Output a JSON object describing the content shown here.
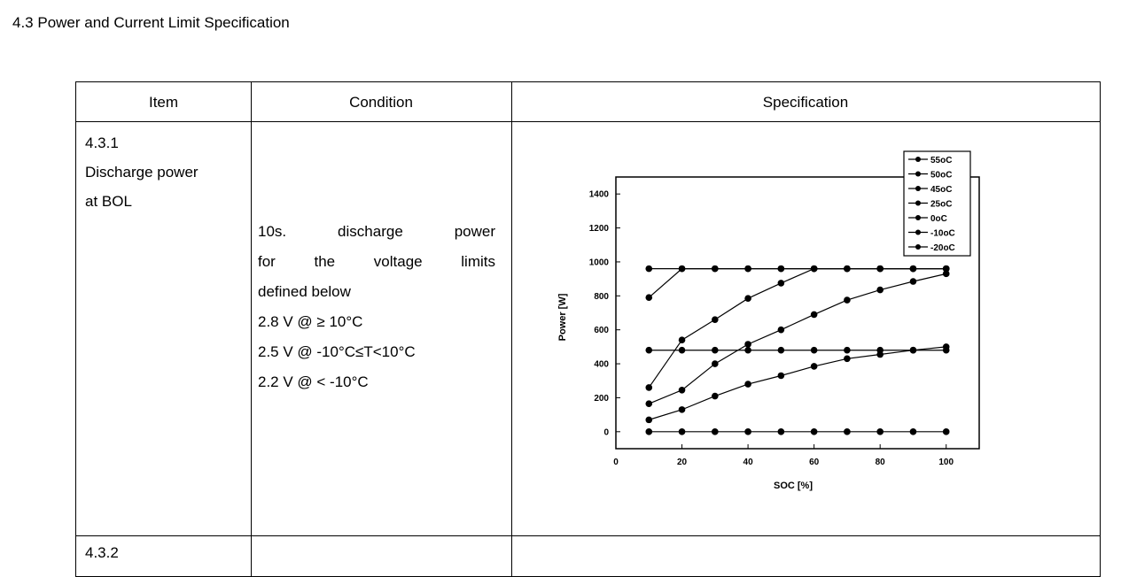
{
  "section_title": "4.3 Power and Current Limit Specification",
  "table": {
    "headers": [
      "Item",
      "Condition",
      "Specification"
    ],
    "rows": [
      {
        "item": [
          "4.3.1",
          "Discharge power",
          "at BOL"
        ],
        "condition": [
          "10s. discharge power",
          "for the voltage limits",
          "defined below",
          "2.8 V @ ≥ 10°C",
          "2.5 V @ -10°C≤T<10°C",
          "2.2 V @ < -10°C"
        ]
      },
      {
        "item": [
          "4.3.2"
        ]
      }
    ]
  },
  "chart_data": {
    "type": "line",
    "xlabel": "SOC [%]",
    "ylabel": "Power [W]",
    "xlim": [
      0,
      110
    ],
    "ylim": [
      -100,
      1500
    ],
    "xticks": [
      0,
      20,
      40,
      60,
      80,
      100
    ],
    "yticks": [
      0,
      200,
      400,
      600,
      800,
      1000,
      1200,
      1400
    ],
    "legend_position": "top-right",
    "x": [
      10,
      20,
      30,
      40,
      50,
      60,
      70,
      80,
      90,
      100
    ],
    "series": [
      {
        "name": "55oC",
        "values": [
          960,
          960,
          960,
          960,
          960,
          960,
          960,
          960,
          960,
          960
        ]
      },
      {
        "name": "50oC",
        "values": [
          790,
          960,
          960,
          960,
          960,
          960,
          960,
          960,
          960,
          960
        ]
      },
      {
        "name": "45oC",
        "values": [
          260,
          540,
          660,
          785,
          875,
          960,
          960,
          960,
          960,
          960
        ]
      },
      {
        "name": "25oC",
        "values": [
          165,
          245,
          400,
          515,
          600,
          690,
          775,
          835,
          885,
          930
        ]
      },
      {
        "name": "0oC",
        "values": [
          70,
          130,
          210,
          280,
          330,
          385,
          430,
          455,
          480,
          500
        ]
      },
      {
        "name": "-10oC",
        "values": [
          480,
          480,
          480,
          480,
          480,
          480,
          480,
          480,
          480,
          480
        ]
      },
      {
        "name": "-20oC",
        "values": [
          0,
          0,
          0,
          0,
          0,
          0,
          0,
          0,
          0,
          0
        ]
      }
    ]
  }
}
